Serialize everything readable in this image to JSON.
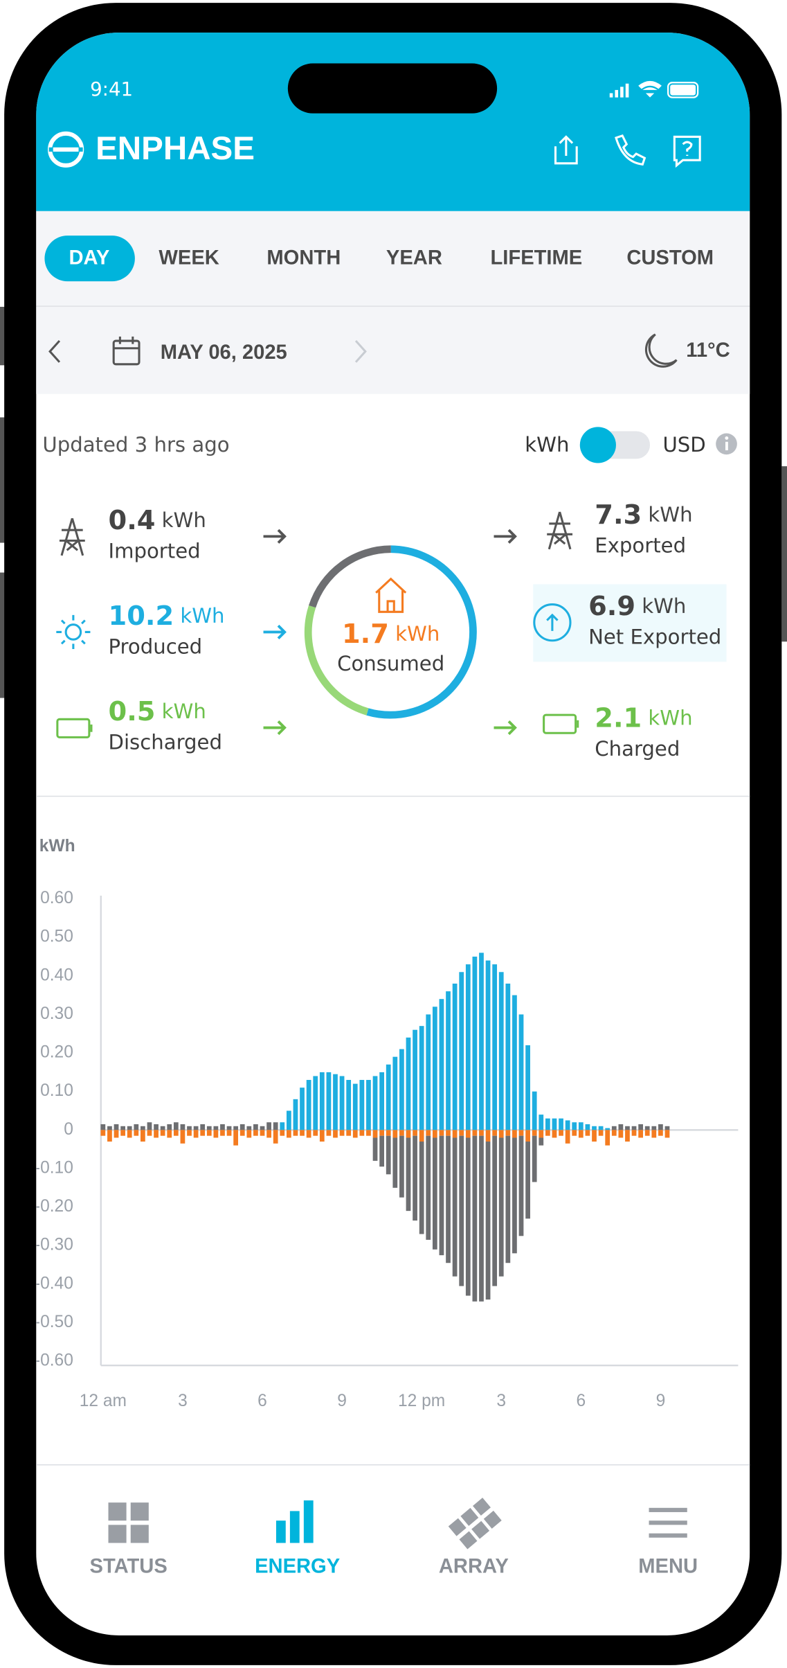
{
  "status_bar": {
    "time": "9:41"
  },
  "header": {
    "brand": "ENPHASE"
  },
  "tabs": [
    "DAY",
    "WEEK",
    "MONTH",
    "YEAR",
    "LIFETIME",
    "CUSTOM"
  ],
  "date_bar": {
    "date": "MAY 06, 2025",
    "temperature": "11°C"
  },
  "summary": {
    "updated": "Updated 3 hrs ago",
    "toggle": [
      "kWh",
      "USD"
    ],
    "imported": {
      "value": 0.4,
      "unit": "kWh",
      "label": "Imported"
    },
    "produced": {
      "value": 10.2,
      "unit": "kWh",
      "label": "Produced"
    },
    "discharged": {
      "value": 0.5,
      "unit": "kWh",
      "label": "Discharged"
    },
    "consumed": {
      "value": 1.7,
      "unit": "kWh",
      "label": "Consumed"
    },
    "exported": {
      "value": 7.3,
      "unit": "kWh",
      "label": "Exported"
    },
    "net_exported": {
      "value": 6.9,
      "unit": "kWh",
      "label": "Net Exported"
    },
    "charged": {
      "value": 2.1,
      "unit": "kWh",
      "label": "Charged"
    }
  },
  "chart_data": {
    "type": "bar",
    "y_label": "kWh",
    "stacked": true,
    "x": [
      0,
      0.25,
      0.5,
      0.75,
      1,
      1.25,
      1.5,
      1.75,
      2,
      2.25,
      2.5,
      2.75,
      3,
      3.25,
      3.5,
      3.75,
      4,
      4.25,
      4.5,
      4.75,
      5,
      5.25,
      5.5,
      5.75,
      6,
      6.25,
      6.5,
      6.75,
      7,
      7.25,
      7.5,
      7.75,
      8,
      8.25,
      8.5,
      8.75,
      9,
      9.25,
      9.5,
      9.75,
      10,
      10.25,
      10.5,
      10.75,
      11,
      11.25,
      11.5,
      11.75,
      12,
      12.25,
      12.5,
      12.75,
      13,
      13.25,
      13.5,
      13.75,
      14,
      14.25,
      14.5,
      14.75,
      15,
      15.25,
      15.5,
      15.75,
      16,
      16.25,
      16.5,
      16.75,
      17,
      17.25,
      17.5,
      17.75,
      18,
      18.25,
      18.5,
      18.75,
      19,
      19.25,
      19.5,
      19.75,
      20,
      20.25,
      20.5,
      20.75,
      21,
      21.25
    ],
    "series": [
      {
        "color": "#6d6e71",
        "values": [
          0.015,
          0.01,
          0.015,
          0.01,
          0.01,
          0.015,
          0.01,
          0.02,
          0.015,
          0.01,
          0.015,
          0.02,
          0.015,
          0.01,
          0.01,
          0.015,
          0.01,
          0.01,
          0.015,
          0.01,
          0.01,
          0.015,
          0.01,
          0.015,
          0.01,
          0.02,
          0.02,
          0,
          0,
          0,
          0,
          0,
          0,
          0,
          0,
          0,
          0,
          0,
          0,
          0,
          0,
          0,
          0,
          0,
          0,
          0,
          0,
          0,
          0,
          0,
          0,
          0,
          0,
          0,
          0,
          0,
          0,
          0,
          0,
          0,
          0,
          0,
          0,
          0,
          0,
          0,
          0,
          0,
          0,
          0,
          0,
          0,
          0,
          0,
          0,
          0,
          0,
          0.01,
          0.015,
          0.01,
          0.01,
          0.015,
          0.01,
          0.01,
          0.015,
          0.01
        ]
      },
      {
        "color": "#1eaee0",
        "values": [
          0,
          0,
          0,
          0,
          0,
          0,
          0,
          0,
          0,
          0,
          0,
          0,
          0,
          0,
          0,
          0,
          0,
          0,
          0,
          0,
          0,
          0,
          0,
          0,
          0,
          0,
          0,
          0.02,
          0.05,
          0.08,
          0.11,
          0.13,
          0.14,
          0.15,
          0.15,
          0.145,
          0.14,
          0.13,
          0.12,
          0.13,
          0.13,
          0.14,
          0.15,
          0.17,
          0.19,
          0.21,
          0.24,
          0.26,
          0.27,
          0.3,
          0.32,
          0.34,
          0.36,
          0.38,
          0.41,
          0.43,
          0.45,
          0.46,
          0.44,
          0.43,
          0.41,
          0.38,
          0.35,
          0.3,
          0.22,
          0.1,
          0.04,
          0.03,
          0.03,
          0.03,
          0.025,
          0.02,
          0.02,
          0.015,
          0.01,
          0.01,
          0.005,
          0,
          0,
          0,
          0,
          0,
          0,
          0,
          0,
          0
        ]
      },
      {
        "color": "#f47b20",
        "values": [
          -0.015,
          -0.03,
          -0.02,
          -0.015,
          -0.02,
          -0.015,
          -0.03,
          -0.015,
          -0.02,
          -0.015,
          -0.02,
          -0.015,
          -0.035,
          -0.015,
          -0.02,
          -0.015,
          -0.015,
          -0.02,
          -0.015,
          -0.015,
          -0.04,
          -0.015,
          -0.02,
          -0.015,
          -0.015,
          -0.02,
          -0.035,
          -0.015,
          -0.02,
          -0.015,
          -0.015,
          -0.02,
          -0.015,
          -0.03,
          -0.015,
          -0.02,
          -0.015,
          -0.015,
          -0.02,
          -0.015,
          -0.015,
          -0.02,
          -0.015,
          -0.015,
          -0.02,
          -0.015,
          -0.02,
          -0.015,
          -0.03,
          -0.015,
          -0.02,
          -0.015,
          -0.015,
          -0.02,
          -0.015,
          -0.02,
          -0.015,
          -0.015,
          -0.03,
          -0.015,
          -0.02,
          -0.015,
          -0.02,
          -0.015,
          -0.03,
          -0.015,
          -0.02,
          -0.015,
          -0.02,
          -0.015,
          -0.035,
          -0.015,
          -0.02,
          -0.015,
          -0.03,
          -0.015,
          -0.04,
          -0.015,
          -0.02,
          -0.03,
          -0.015,
          -0.02,
          -0.015,
          -0.02,
          -0.015,
          -0.02
        ]
      },
      {
        "color": "#6d6e71",
        "values": [
          0,
          0,
          0,
          0,
          0,
          0,
          0,
          0,
          0,
          0,
          0,
          0,
          0,
          0,
          0,
          0,
          0,
          0,
          0,
          0,
          0,
          0,
          0,
          0,
          0,
          0,
          0,
          0,
          0,
          0,
          0,
          0,
          0,
          0,
          0,
          0,
          0,
          0,
          0,
          0,
          0,
          -0.06,
          -0.08,
          -0.1,
          -0.13,
          -0.16,
          -0.19,
          -0.22,
          -0.24,
          -0.27,
          -0.29,
          -0.31,
          -0.33,
          -0.36,
          -0.39,
          -0.41,
          -0.43,
          -0.43,
          -0.41,
          -0.39,
          -0.36,
          -0.33,
          -0.3,
          -0.26,
          -0.2,
          -0.12,
          -0.02,
          0,
          0,
          0,
          0,
          0,
          0,
          0,
          0,
          0,
          0,
          0,
          0,
          0,
          0,
          0,
          0,
          0,
          0,
          0
        ]
      }
    ],
    "xlim": [
      0,
      24
    ],
    "xticks": [
      {
        "value": 0,
        "label": "12 am"
      },
      3,
      6,
      9,
      {
        "value": 12,
        "label": "12 pm"
      },
      {
        "value": 15,
        "label": "3"
      },
      {
        "value": 18,
        "label": "6"
      },
      {
        "value": 21,
        "label": "9"
      }
    ],
    "ylim": [
      -0.6,
      0.6
    ],
    "yticks": [
      {
        "value": 0.6,
        "label": "0.60"
      },
      {
        "value": 0.5,
        "label": "0.50"
      },
      {
        "value": 0.4,
        "label": "0.40"
      },
      {
        "value": 0.3,
        "label": "0.30"
      },
      {
        "value": 0.2,
        "label": "0.20"
      },
      {
        "value": 0.1,
        "label": "0.10"
      },
      0,
      {
        "value": -0.1,
        "label": "-0.10"
      },
      {
        "value": -0.2,
        "label": "-0.20"
      },
      {
        "value": -0.3,
        "label": "-0.30"
      },
      {
        "value": -0.4,
        "label": "-0.40"
      },
      {
        "value": -0.5,
        "label": "-0.50"
      },
      {
        "value": -0.6,
        "label": "-0.60"
      }
    ]
  },
  "nav": [
    "STATUS",
    "ENERGY",
    "ARRAY",
    "MENU"
  ]
}
